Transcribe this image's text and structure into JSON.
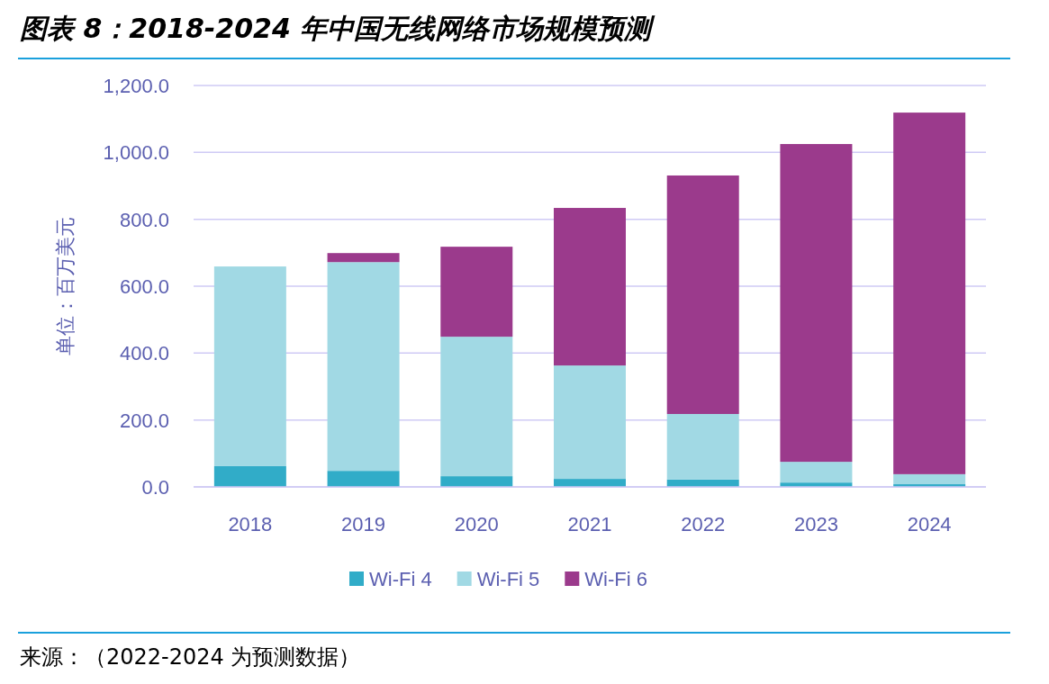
{
  "chart_data": {
    "type": "bar",
    "title": "图表 8：2018-2024 年中国无线网络市场规模预测",
    "ylabel": "单位：百万美元",
    "categories": [
      "2018",
      "2019",
      "2020",
      "2021",
      "2022",
      "2023",
      "2024"
    ],
    "stacked": true,
    "series": [
      {
        "name": "Wi-Fi 4",
        "color": "#31acc8",
        "values": [
          62,
          48,
          32,
          24,
          22,
          13,
          8
        ]
      },
      {
        "name": "Wi-Fi 5",
        "color": "#a1d9e4",
        "values": [
          597,
          624,
          417,
          339,
          196,
          62,
          30
        ]
      },
      {
        "name": "Wi-Fi 6",
        "color": "#9b3a8c",
        "values": [
          0,
          27,
          269,
          471,
          713,
          950,
          1081
        ]
      }
    ],
    "ylim": [
      0,
      1200
    ],
    "yticks": [
      {
        "value": 0,
        "label": "0.0"
      },
      {
        "value": 200,
        "label": "200.0"
      },
      {
        "value": 400,
        "label": "400.0"
      },
      {
        "value": 600,
        "label": "600.0"
      },
      {
        "value": 800,
        "label": "800.0"
      },
      {
        "value": 1000,
        "label": "1,000.0"
      },
      {
        "value": 1200,
        "label": "1,200.0"
      }
    ],
    "grid": "y",
    "legend": "bottom",
    "annotations": [
      "来源：（2022-2024 为预测数据）"
    ]
  }
}
